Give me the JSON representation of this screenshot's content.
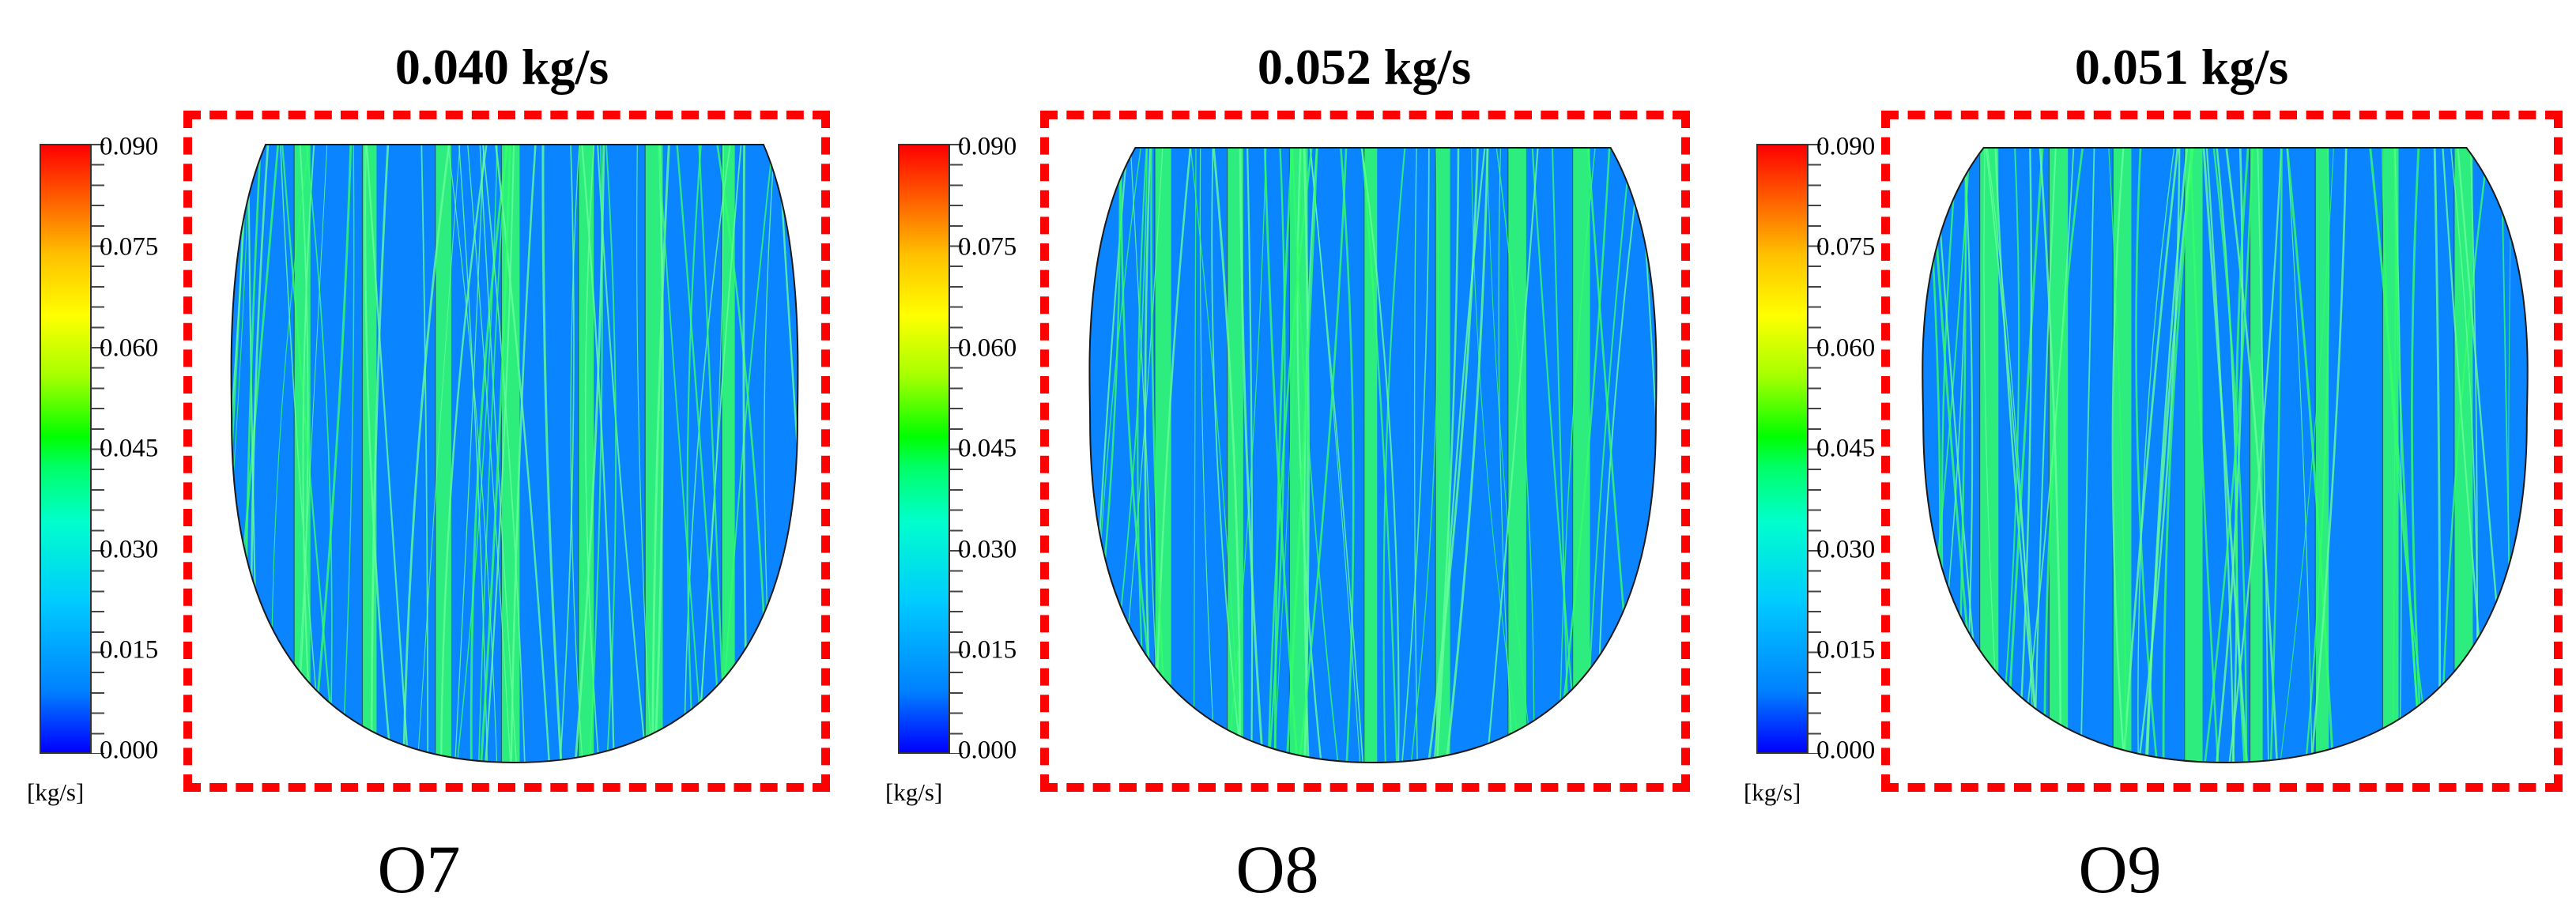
{
  "panels": [
    {
      "id": "O7",
      "label": "O7",
      "flow_rate": "0.040 kg/s"
    },
    {
      "id": "O8",
      "label": "O8",
      "flow_rate": "0.052 kg/s"
    },
    {
      "id": "O9",
      "label": "O9",
      "flow_rate": "0.051 kg/s"
    }
  ],
  "colorbar": {
    "ticks": [
      "0.090",
      "0.075",
      "0.060",
      "0.045",
      "0.030",
      "0.015",
      "0.000"
    ],
    "unit": "[kg/s]",
    "colors": [
      "#0000ff",
      "#0080ff",
      "#00ccff",
      "#00ffcc",
      "#00ff00",
      "#ffff00",
      "#ff8000",
      "#ff0000"
    ]
  },
  "field_colors": {
    "background": "#0a85ff",
    "streak": "#33ff66",
    "streak_light": "#66ff99",
    "outline": "#1a1a1a"
  }
}
